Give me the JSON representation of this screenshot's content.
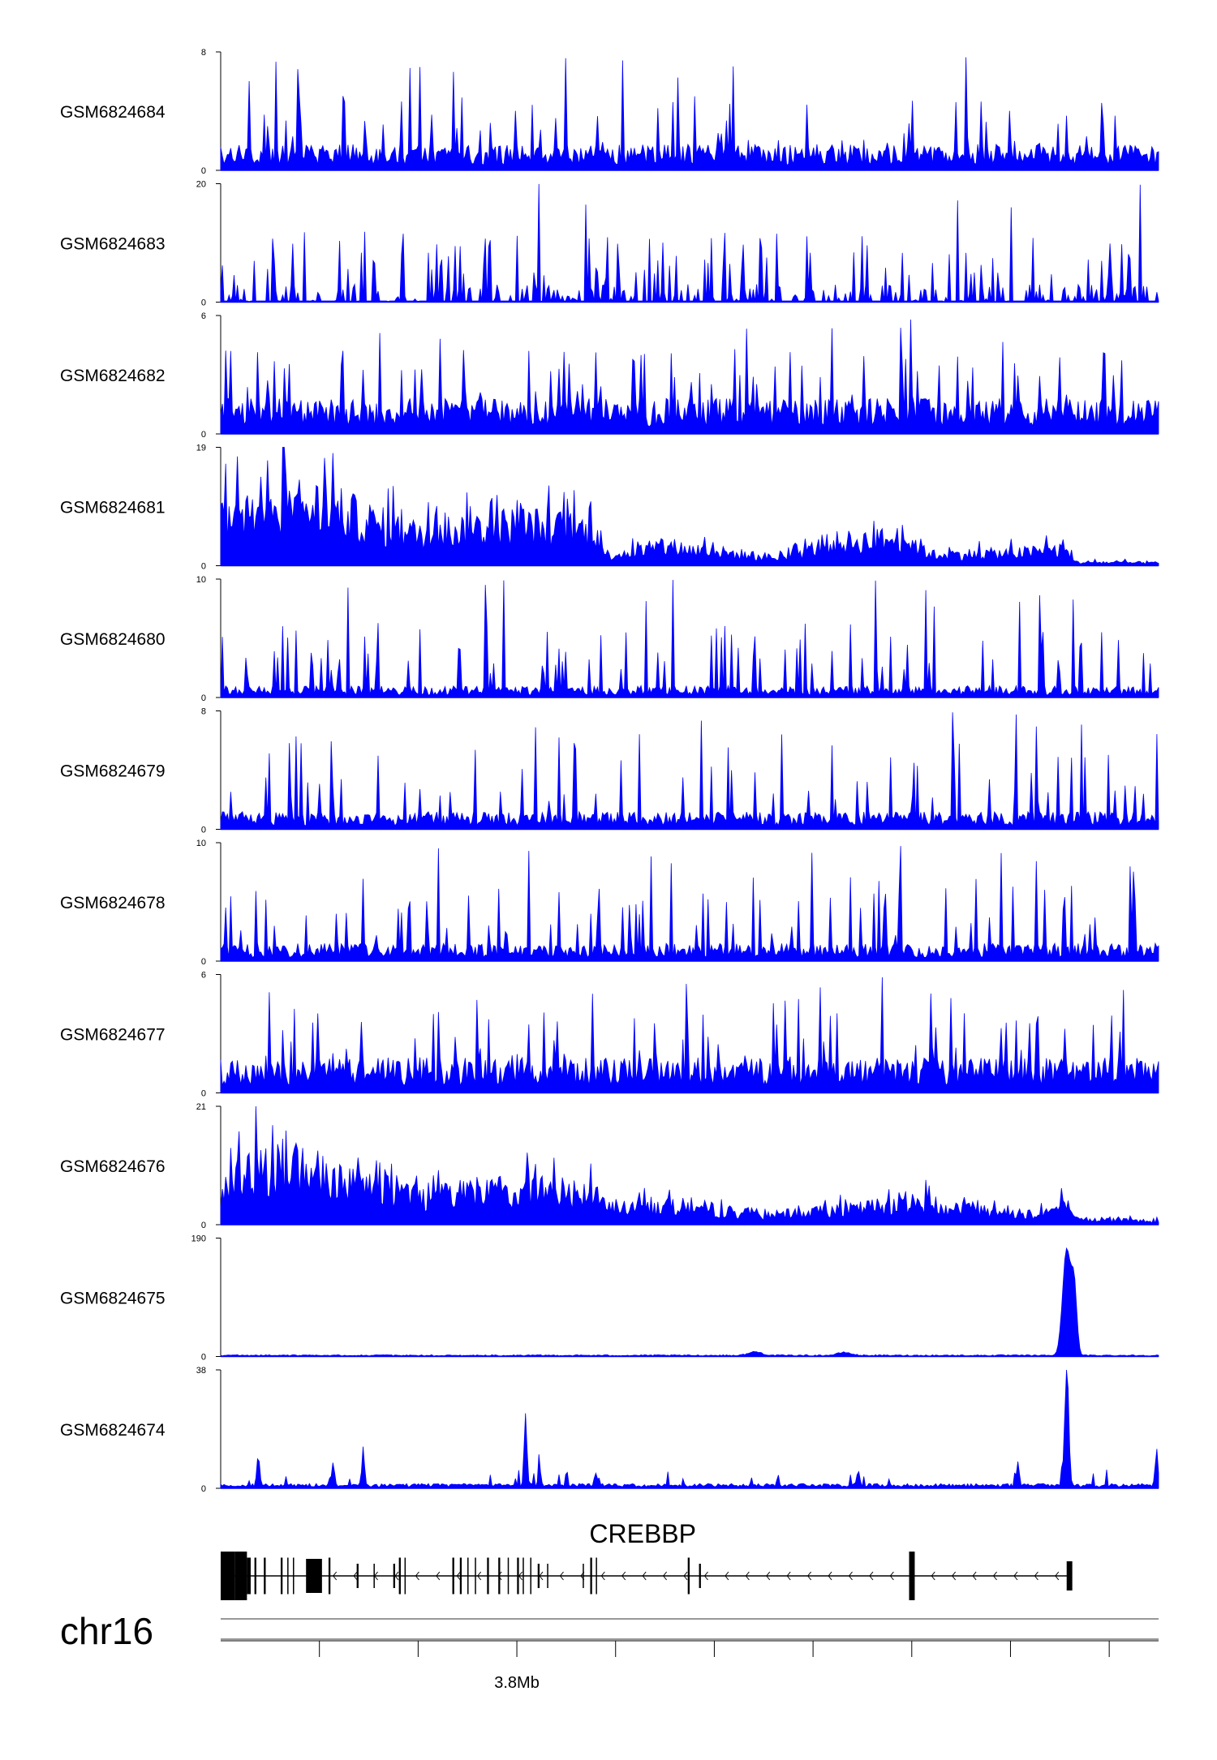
{
  "chart_data": {
    "type": "area",
    "title": "",
    "xlabel": "",
    "ylabel": "",
    "grid": false,
    "legend": "none",
    "x_unit": "bp",
    "x_range": [
      3740000,
      3930000
    ],
    "series_color": "#0000ff",
    "track_ymin_label": "0",
    "series": [
      {
        "name": "GSM6824684",
        "ymax": 8,
        "ymax_label": "8",
        "pattern": "noise",
        "base": 0.22,
        "spike": 0.35
      },
      {
        "name": "GSM6824683",
        "ymax": 20,
        "ymax_label": "20",
        "pattern": "sparse",
        "base": 0.05,
        "spike": 0.4
      },
      {
        "name": "GSM6824682",
        "ymax": 6,
        "ymax_label": "6",
        "pattern": "noise",
        "base": 0.3,
        "spike": 0.4
      },
      {
        "name": "GSM6824681",
        "ymax": 19,
        "ymax_label": "19",
        "pattern": "enriched",
        "profile": [
          [
            0,
            0.55
          ],
          [
            0.07,
            0.7
          ],
          [
            0.12,
            0.6
          ],
          [
            0.2,
            0.35
          ],
          [
            0.32,
            0.45
          ],
          [
            0.4,
            0.38
          ],
          [
            0.41,
            0.12
          ],
          [
            0.48,
            0.2
          ],
          [
            0.6,
            0.08
          ],
          [
            0.65,
            0.25
          ],
          [
            0.73,
            0.3
          ],
          [
            0.76,
            0.12
          ],
          [
            0.85,
            0.14
          ],
          [
            0.9,
            0.18
          ],
          [
            0.91,
            0.04
          ],
          [
            1,
            0.03
          ]
        ]
      },
      {
        "name": "GSM6824680",
        "ymax": 10,
        "ymax_label": "10",
        "pattern": "noise",
        "base": 0.1,
        "spike": 0.35
      },
      {
        "name": "GSM6824679",
        "ymax": 8,
        "ymax_label": "8",
        "pattern": "noise",
        "base": 0.15,
        "spike": 0.45
      },
      {
        "name": "GSM6824678",
        "ymax": 10,
        "ymax_label": "10",
        "pattern": "noise",
        "base": 0.15,
        "spike": 0.4
      },
      {
        "name": "GSM6824677",
        "ymax": 6,
        "ymax_label": "6",
        "pattern": "noise",
        "base": 0.3,
        "spike": 0.4
      },
      {
        "name": "GSM6824676",
        "ymax": 21,
        "ymax_label": "21",
        "pattern": "enriched",
        "profile": [
          [
            0,
            0.3
          ],
          [
            0.02,
            0.62
          ],
          [
            0.07,
            0.65
          ],
          [
            0.15,
            0.4
          ],
          [
            0.22,
            0.28
          ],
          [
            0.3,
            0.4
          ],
          [
            0.4,
            0.38
          ],
          [
            0.41,
            0.18
          ],
          [
            0.5,
            0.2
          ],
          [
            0.58,
            0.1
          ],
          [
            0.67,
            0.16
          ],
          [
            0.73,
            0.25
          ],
          [
            0.8,
            0.18
          ],
          [
            0.87,
            0.12
          ],
          [
            0.9,
            0.2
          ],
          [
            0.91,
            0.06
          ],
          [
            1,
            0.04
          ]
        ]
      },
      {
        "name": "GSM6824675",
        "ymax": 190,
        "ymax_label": "190",
        "pattern": "peak",
        "base": 0.015,
        "peaks": [
          [
            0.902,
            0.9,
            0.006
          ],
          [
            0.91,
            0.55,
            0.004
          ],
          [
            0.57,
            0.03,
            0.01
          ],
          [
            0.665,
            0.025,
            0.01
          ]
        ]
      },
      {
        "name": "GSM6824674",
        "ymax": 38,
        "ymax_label": "38",
        "pattern": "peaky",
        "base": 0.04,
        "peaks": [
          [
            0.902,
            0.95,
            0.003
          ],
          [
            0.325,
            0.6,
            0.002
          ],
          [
            0.04,
            0.25,
            0.002
          ],
          [
            0.152,
            0.28,
            0.002
          ],
          [
            0.12,
            0.2,
            0.002
          ],
          [
            0.34,
            0.15,
            0.002
          ],
          [
            0.4,
            0.1,
            0.002
          ],
          [
            0.68,
            0.13,
            0.002
          ],
          [
            0.85,
            0.2,
            0.002
          ],
          [
            0.998,
            0.3,
            0.002
          ]
        ]
      }
    ],
    "gene": {
      "name": "CREBBP",
      "strand": "-",
      "exons": [
        [
          0,
          0.015,
          1.0
        ],
        [
          0.015,
          0.028,
          1.0
        ],
        [
          0.028,
          0.032,
          0.75
        ],
        [
          0.036,
          0.038,
          0.75
        ],
        [
          0.046,
          0.048,
          0.75
        ],
        [
          0.064,
          0.066,
          0.75
        ],
        [
          0.071,
          0.072,
          0.75
        ],
        [
          0.077,
          0.078,
          0.75
        ],
        [
          0.091,
          0.108,
          0.7
        ],
        [
          0.115,
          0.117,
          0.75
        ],
        [
          0.145,
          0.147,
          0.5
        ],
        [
          0.163,
          0.164,
          0.5
        ],
        [
          0.184,
          0.186,
          0.5
        ],
        [
          0.19,
          0.192,
          0.75
        ],
        [
          0.196,
          0.197,
          0.75
        ],
        [
          0.247,
          0.249,
          0.75
        ],
        [
          0.255,
          0.257,
          0.75
        ],
        [
          0.263,
          0.264,
          0.75
        ],
        [
          0.271,
          0.272,
          0.75
        ],
        [
          0.284,
          0.286,
          0.75
        ],
        [
          0.296,
          0.298,
          0.75
        ],
        [
          0.306,
          0.307,
          0.75
        ],
        [
          0.316,
          0.318,
          0.75
        ],
        [
          0.322,
          0.323,
          0.75
        ],
        [
          0.33,
          0.331,
          0.75
        ],
        [
          0.338,
          0.34,
          0.5
        ],
        [
          0.348,
          0.349,
          0.5
        ],
        [
          0.386,
          0.387,
          0.5
        ],
        [
          0.394,
          0.396,
          0.75
        ],
        [
          0.4,
          0.401,
          0.75
        ],
        [
          0.498,
          0.5,
          0.75
        ],
        [
          0.51,
          0.512,
          0.5
        ],
        [
          0.734,
          0.74,
          1.0
        ],
        [
          0.902,
          0.908,
          0.6
        ]
      ]
    },
    "chromosome": "chr16",
    "axis_ticks": [
      {
        "x": 3760000,
        "label": ""
      },
      {
        "x": 3780000,
        "label": ""
      },
      {
        "x": 3800000,
        "label": "3.8Mb"
      },
      {
        "x": 3820000,
        "label": ""
      },
      {
        "x": 3840000,
        "label": ""
      },
      {
        "x": 3860000,
        "label": ""
      },
      {
        "x": 3880000,
        "label": ""
      },
      {
        "x": 3900000,
        "label": ""
      },
      {
        "x": 3920000,
        "label": ""
      }
    ]
  }
}
